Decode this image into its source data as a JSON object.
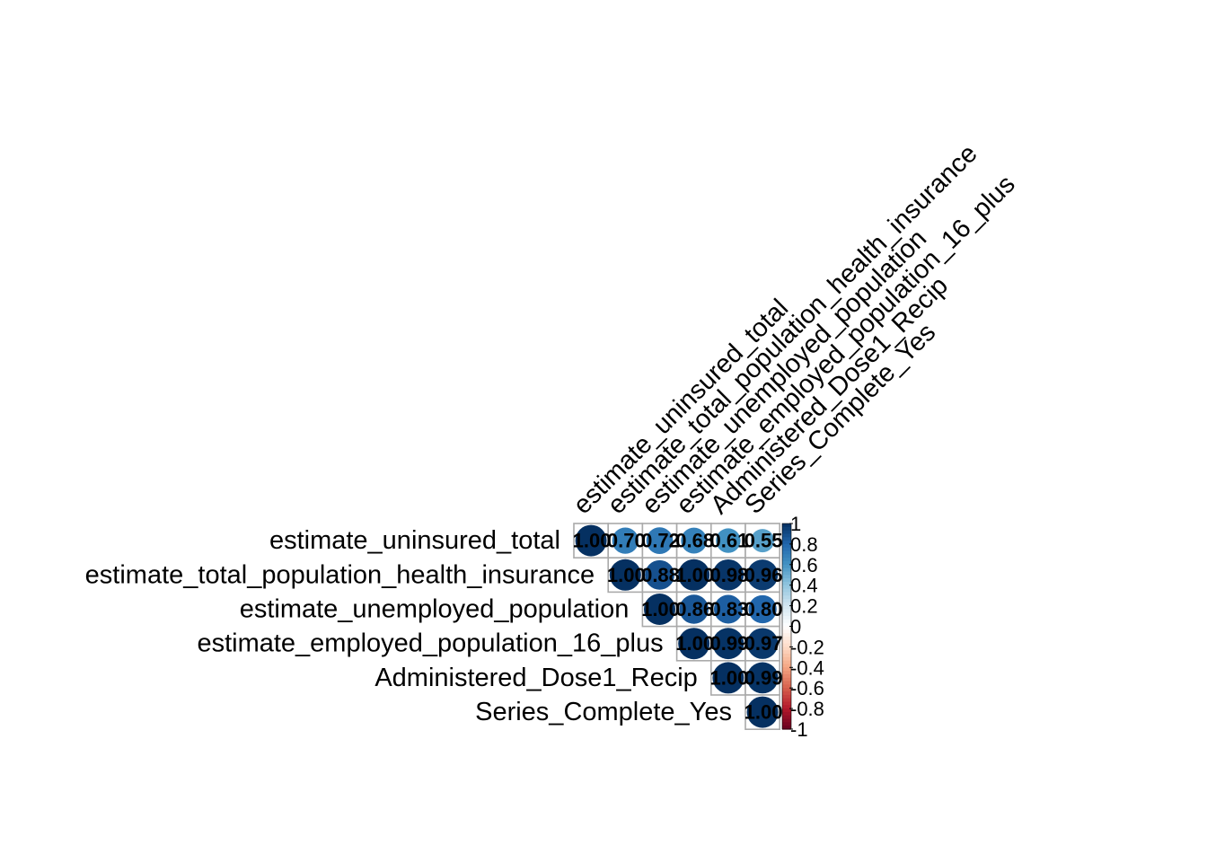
{
  "chart_data": {
    "type": "heatmap",
    "variables": [
      "estimate_uninsured_total",
      "estimate_total_population_health_insurance",
      "estimate_unemployed_population",
      "estimate_employed_population_16_plus",
      "Administered_Dose1_Recip",
      "Series_Complete_Yes"
    ],
    "matrix": [
      [
        1.0,
        0.7,
        0.72,
        0.68,
        0.61,
        0.55
      ],
      [
        null,
        1.0,
        0.88,
        1.0,
        0.98,
        0.96
      ],
      [
        null,
        null,
        1.0,
        0.86,
        0.83,
        0.8
      ],
      [
        null,
        null,
        null,
        1.0,
        0.99,
        0.97
      ],
      [
        null,
        null,
        null,
        null,
        1.0,
        0.99
      ],
      [
        null,
        null,
        null,
        null,
        null,
        1.0
      ]
    ],
    "display_labels": [
      [
        "1.00",
        "0.70",
        "0.72",
        "0.68",
        "0.61",
        "0.55"
      ],
      [
        "",
        "1.00",
        "0.88",
        "1.00",
        "0.98",
        "0.96"
      ],
      [
        "",
        "",
        "1.00",
        "0.86",
        "0.83",
        "0.80"
      ],
      [
        "",
        "",
        "",
        "1.00",
        "0.99",
        "0.97"
      ],
      [
        "",
        "",
        "",
        "",
        "1.00",
        "0.99"
      ],
      [
        "",
        "",
        "",
        "",
        "",
        "1.00"
      ]
    ],
    "layout": "upper",
    "method": "circle",
    "colorbar": {
      "range": [
        -1,
        1
      ],
      "ticks": [
        "1",
        "0.8",
        "0.6",
        "0.4",
        "0.2",
        "0",
        "-0.2",
        "-0.4",
        "-0.6",
        "-0.8",
        "-1"
      ],
      "colors_negative_to_positive": [
        "#67001F",
        "#B2182B",
        "#D6604D",
        "#F4A582",
        "#FDDBC7",
        "#FFFFFF",
        "#D1E5F0",
        "#92C5DE",
        "#4393C3",
        "#2166AC",
        "#053061"
      ]
    },
    "grid_color": "#AAAAAA"
  }
}
